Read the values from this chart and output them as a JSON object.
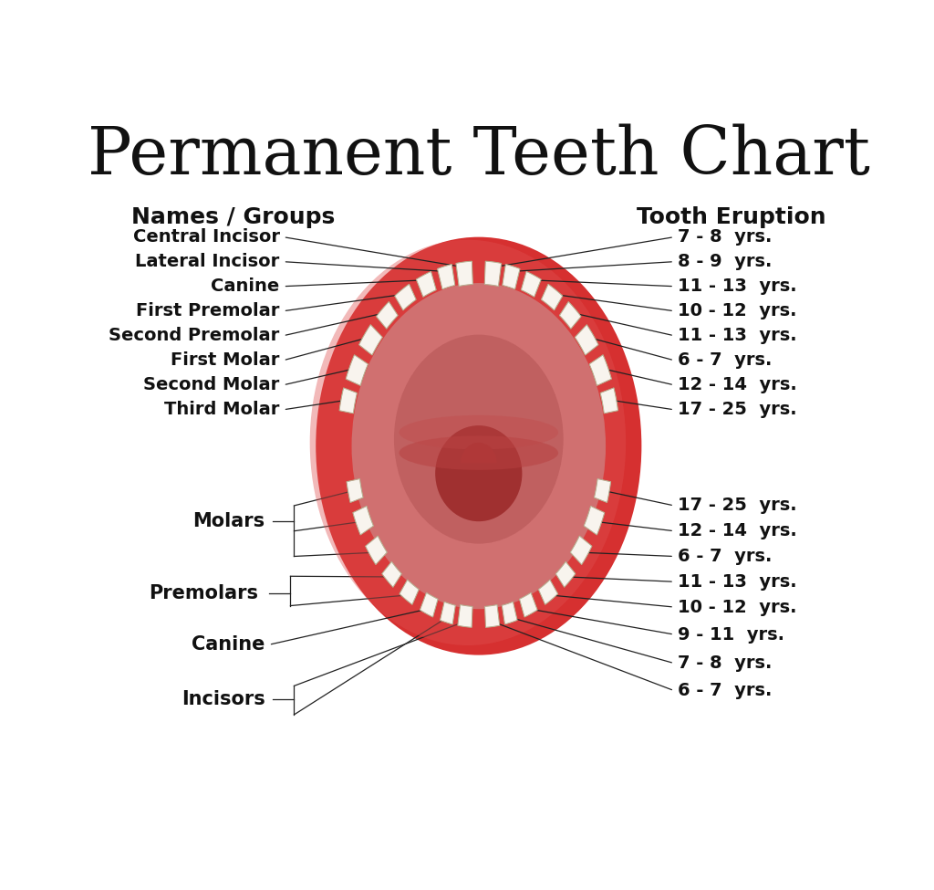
{
  "title": "Permanent Teeth Chart",
  "title_fontsize": 52,
  "bg_color": "#ffffff",
  "left_header": "Names / Groups",
  "right_header": "Tooth Eruption",
  "header_fontsize": 18,
  "label_fontsize": 14,
  "upper_left_labels": [
    "Central Incisor",
    "Lateral Incisor",
    "Canine",
    "First Premolar",
    "Second Premolar",
    "First Molar",
    "Second Molar",
    "Third Molar"
  ],
  "upper_right_labels": [
    "7 - 8  yrs.",
    "8 - 9  yrs.",
    "11 - 13  yrs.",
    "10 - 12  yrs.",
    "11 - 13  yrs.",
    "6 - 7  yrs.",
    "12 - 14  yrs.",
    "17 - 25  yrs."
  ],
  "lower_left_groups": [
    "Molars",
    "Premolars",
    "Canine",
    "Incisors"
  ],
  "lower_right_labels": [
    "17 - 25  yrs.",
    "12 - 14  yrs.",
    "6 - 7  yrs.",
    "11 - 13  yrs.",
    "10 - 12  yrs.",
    "9 - 11  yrs.",
    "7 - 8  yrs.",
    "6 - 7  yrs."
  ],
  "gum_outer": "#d94040",
  "gum_mid": "#c85050",
  "gum_inner": "#c06060",
  "palate_color": "#d08080",
  "palate_dark": "#b05858",
  "tooth_color": "#f8f4ee",
  "tooth_shadow": "#c8c0a8",
  "line_color": "#222222"
}
